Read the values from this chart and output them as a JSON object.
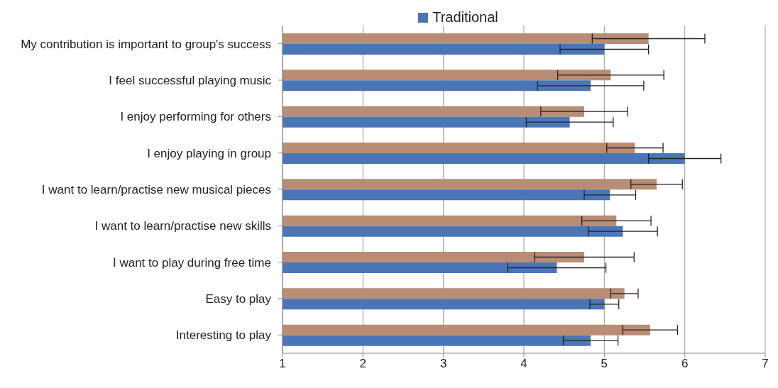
{
  "chart_data": {
    "type": "bar",
    "orientation": "horizontal",
    "categories": [
      "My contribution is important to group's success",
      "I feel successful playing music",
      "I enjoy performing for others",
      "I enjoy playing in group",
      "I want to learn/practise new musical pieces",
      "I want to learn/practise new skills",
      "I want to play during free time",
      "Easy to play",
      "Interesting to play"
    ],
    "series": [
      {
        "color": "#b98c74",
        "values": [
          5.55,
          5.08,
          4.75,
          5.38,
          5.65,
          5.15,
          4.75,
          5.25,
          5.57
        ],
        "errors": [
          0.7,
          0.66,
          0.54,
          0.35,
          0.32,
          0.43,
          0.62,
          0.17,
          0.34
        ]
      },
      {
        "name": "Traditional",
        "color": "#4a76b8",
        "values": [
          5.0,
          4.83,
          4.57,
          6.0,
          5.07,
          5.23,
          4.41,
          5.0,
          4.83
        ],
        "errors": [
          0.55,
          0.66,
          0.54,
          0.45,
          0.32,
          0.43,
          0.61,
          0.18,
          0.34
        ]
      }
    ],
    "xlim": [
      1,
      7
    ],
    "xticks": [
      1,
      2,
      3,
      4,
      5,
      6,
      7
    ],
    "grid": "x",
    "legend": "top"
  }
}
